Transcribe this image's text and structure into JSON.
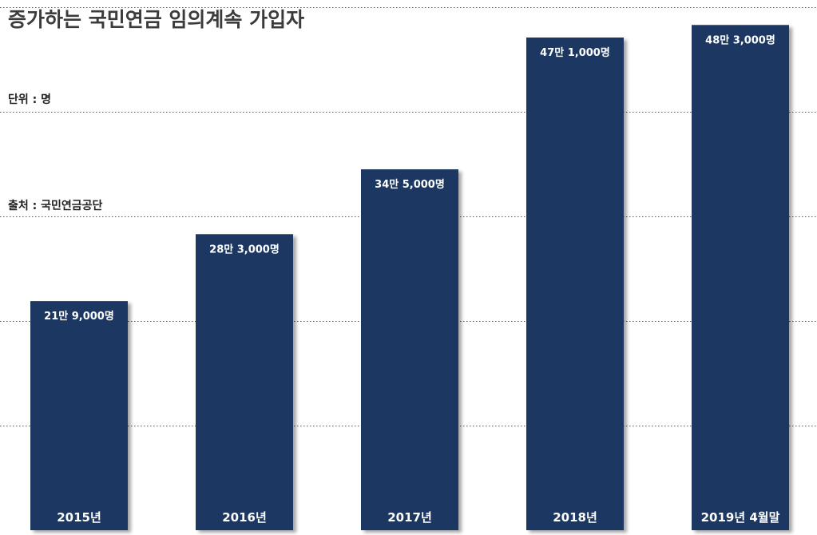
{
  "chart_data": {
    "type": "bar",
    "title": "증가하는 국민연금 임의계속 가입자",
    "unit_note": "단위 : 명",
    "source_note": "출처 : 국민연금공단",
    "categories": [
      "2015년",
      "2016년",
      "2017년",
      "2018년",
      "2019년 4월말"
    ],
    "values": [
      219000,
      283000,
      345000,
      471000,
      483000
    ],
    "value_labels": [
      "21만 9,000명",
      "28만 3,000명",
      "34만 5,000명",
      "47만 1,000명",
      "48만 3,000명"
    ],
    "ylim": [
      0,
      500000
    ],
    "grid": true,
    "bar_color": "#1f3862",
    "grid_color": "#555555"
  }
}
